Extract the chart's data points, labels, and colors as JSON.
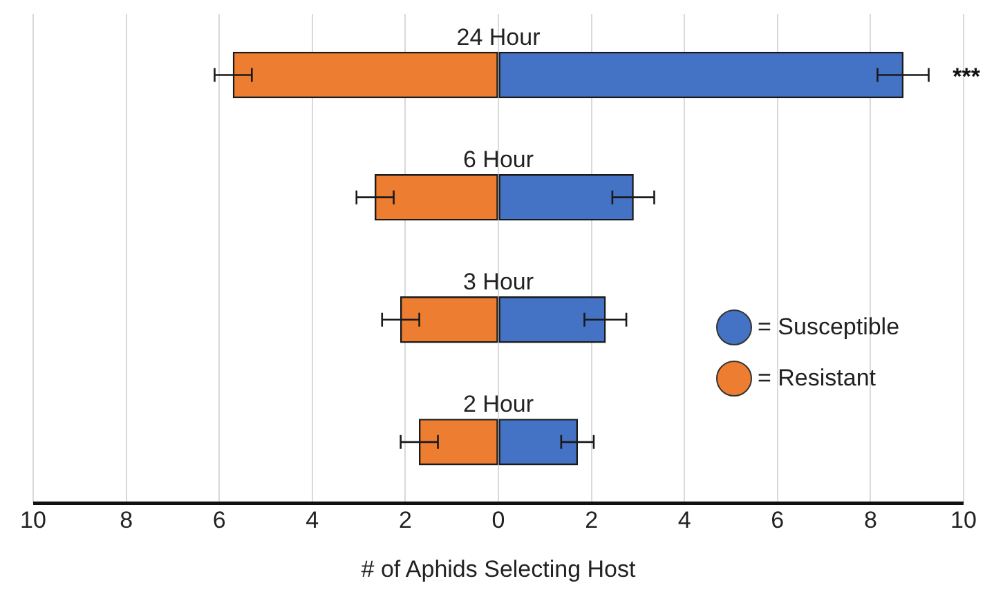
{
  "chart_data": {
    "type": "bar",
    "orientation": "horizontal",
    "stacked": true,
    "xlabel": "# of Aphids Selecting Host",
    "categories": [
      "24 Hour",
      "6 Hour",
      "3 Hour",
      "2 Hour"
    ],
    "series": [
      {
        "name": "= Susceptible",
        "color": "#4472c4",
        "values": [
          8.7,
          2.9,
          2.3,
          1.7
        ],
        "errors": [
          0.55,
          0.45,
          0.45,
          0.35
        ]
      },
      {
        "name": "= Resistant",
        "color": "#ed7d31",
        "values": [
          -5.7,
          -2.65,
          -2.1,
          -1.7
        ],
        "errors": [
          0.4,
          0.4,
          0.4,
          0.4
        ]
      }
    ],
    "xlim": [
      -10,
      10
    ],
    "xticks": [
      {
        "value": -10,
        "label": "10"
      },
      {
        "value": -8,
        "label": "8"
      },
      {
        "value": -6,
        "label": "6"
      },
      {
        "value": -4,
        "label": "4"
      },
      {
        "value": -2,
        "label": "2"
      },
      0,
      2,
      4,
      6,
      8,
      10
    ],
    "grid": "x",
    "legend": "right",
    "tick_labels": "x",
    "annotations": [
      "***"
    ]
  }
}
